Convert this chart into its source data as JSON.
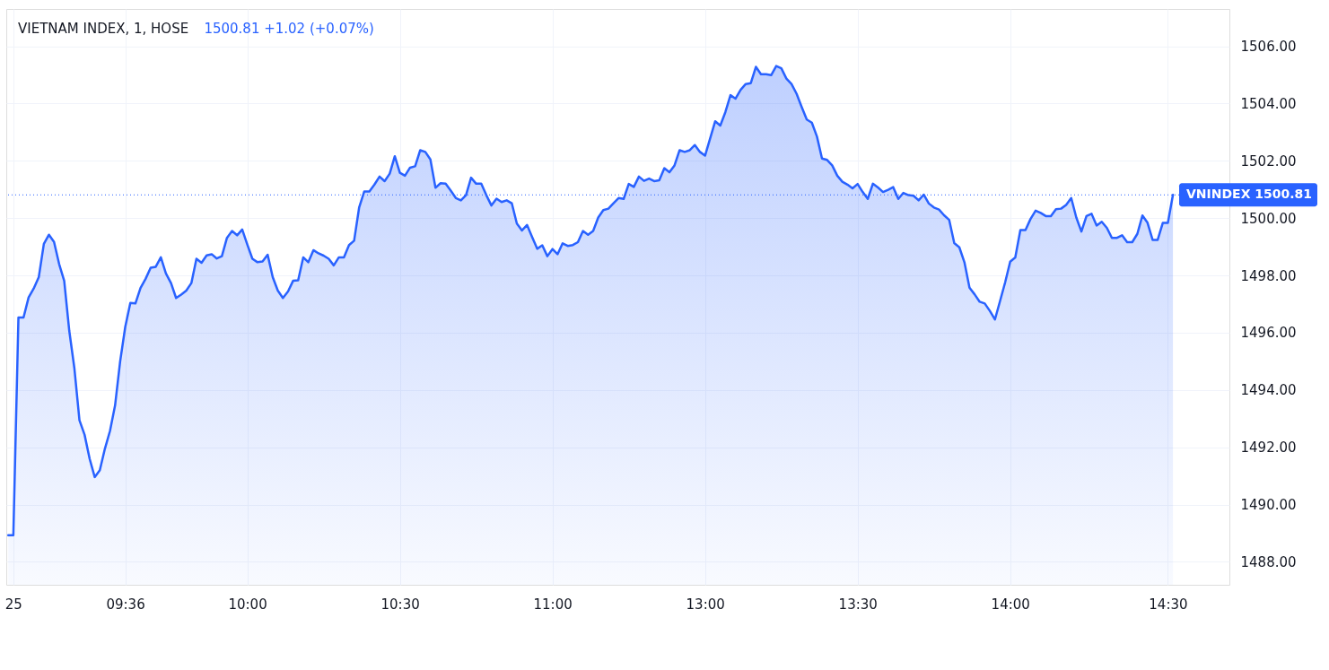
{
  "chart_data": {
    "type": "area",
    "title": "VIETNAM INDEX, 1, HOSE",
    "subtitle": "1500.81 +1.02 (+0.07%)",
    "categories": [
      null,
      "25",
      null,
      null,
      null,
      null,
      null,
      null,
      null,
      null,
      null,
      null,
      null,
      null,
      null,
      null,
      null,
      null,
      null,
      null,
      null,
      null,
      null,
      "09:36",
      null,
      null,
      null,
      null,
      null,
      null,
      null,
      null,
      null,
      null,
      null,
      null,
      null,
      null,
      null,
      null,
      null,
      null,
      null,
      null,
      null,
      null,
      null,
      "10:00",
      null,
      null,
      null,
      null,
      null,
      null,
      null,
      null,
      null,
      null,
      null,
      null,
      null,
      null,
      null,
      null,
      null,
      null,
      null,
      null,
      null,
      null,
      null,
      null,
      null,
      null,
      null,
      null,
      null,
      "10:30",
      null,
      null,
      null,
      null,
      null,
      null,
      null,
      null,
      null,
      null,
      null,
      null,
      null,
      null,
      null,
      null,
      null,
      null,
      null,
      null,
      null,
      null,
      null,
      null,
      null,
      null,
      null,
      null,
      null,
      "11:00",
      null,
      null,
      null,
      null,
      null,
      null,
      null,
      null,
      null,
      null,
      null,
      null,
      null,
      null,
      null,
      null,
      null,
      null,
      null,
      null,
      null,
      null,
      null,
      null,
      null,
      null,
      null,
      null,
      null,
      "13:00",
      null,
      null,
      null,
      null,
      null,
      null,
      null,
      null,
      null,
      null,
      null,
      null,
      null,
      null,
      null,
      null,
      null,
      null,
      null,
      null,
      null,
      null,
      null,
      null,
      null,
      null,
      null,
      null,
      null,
      "13:30",
      null,
      null,
      null,
      null,
      null,
      null,
      null,
      null,
      null,
      null,
      null,
      null,
      null,
      null,
      null,
      null,
      null,
      null,
      null,
      null,
      null,
      null,
      null,
      null,
      null,
      null,
      null,
      null,
      null,
      "14:00",
      null,
      null,
      null,
      null,
      null,
      null,
      null,
      null,
      null,
      null,
      null,
      null,
      null,
      null,
      null,
      null,
      null,
      null,
      null,
      null,
      null,
      null,
      null,
      null,
      null,
      null,
      null,
      null,
      null,
      null,
      "14:30",
      null
    ],
    "series": [
      {
        "color": "#2962ff",
        "values": [
          1488.93,
          1488.93,
          1496.53,
          1496.53,
          1497.23,
          1497.54,
          1497.94,
          1499.1,
          1499.42,
          1499.17,
          1498.4,
          1497.81,
          1496.06,
          1494.76,
          1492.94,
          1492.44,
          1491.6,
          1490.96,
          1491.2,
          1491.95,
          1492.57,
          1493.46,
          1495.0,
          1496.2,
          1497.04,
          1497.02,
          1497.56,
          1497.88,
          1498.27,
          1498.3,
          1498.63,
          1498.07,
          1497.73,
          1497.21,
          1497.33,
          1497.47,
          1497.73,
          1498.58,
          1498.44,
          1498.7,
          1498.74,
          1498.59,
          1498.67,
          1499.31,
          1499.55,
          1499.4,
          1499.6,
          1499.08,
          1498.58,
          1498.46,
          1498.49,
          1498.72,
          1497.94,
          1497.47,
          1497.21,
          1497.44,
          1497.81,
          1497.83,
          1498.63,
          1498.46,
          1498.88,
          1498.77,
          1498.69,
          1498.58,
          1498.35,
          1498.63,
          1498.63,
          1499.06,
          1499.21,
          1500.38,
          1500.93,
          1500.93,
          1501.17,
          1501.45,
          1501.29,
          1501.55,
          1502.16,
          1501.58,
          1501.48,
          1501.76,
          1501.81,
          1502.37,
          1502.31,
          1502.05,
          1501.06,
          1501.22,
          1501.2,
          1500.96,
          1500.7,
          1500.62,
          1500.8,
          1501.41,
          1501.2,
          1501.2,
          1500.8,
          1500.44,
          1500.68,
          1500.56,
          1500.62,
          1500.52,
          1499.81,
          1499.57,
          1499.76,
          1499.34,
          1498.93,
          1499.05,
          1498.67,
          1498.92,
          1498.74,
          1499.12,
          1499.03,
          1499.06,
          1499.16,
          1499.55,
          1499.42,
          1499.55,
          1500.02,
          1500.28,
          1500.33,
          1500.52,
          1500.7,
          1500.67,
          1501.19,
          1501.09,
          1501.45,
          1501.3,
          1501.38,
          1501.29,
          1501.32,
          1501.74,
          1501.6,
          1501.84,
          1502.37,
          1502.31,
          1502.37,
          1502.55,
          1502.31,
          1502.18,
          1502.78,
          1503.38,
          1503.23,
          1503.7,
          1504.29,
          1504.17,
          1504.48,
          1504.68,
          1504.71,
          1505.28,
          1505.02,
          1505.02,
          1504.99,
          1505.31,
          1505.23,
          1504.87,
          1504.68,
          1504.34,
          1503.88,
          1503.44,
          1503.33,
          1502.85,
          1502.08,
          1502.03,
          1501.84,
          1501.48,
          1501.27,
          1501.17,
          1501.04,
          1501.19,
          1500.91,
          1500.67,
          1501.2,
          1501.07,
          1500.91,
          1500.99,
          1501.08,
          1500.67,
          1500.88,
          1500.8,
          1500.78,
          1500.62,
          1500.82,
          1500.51,
          1500.37,
          1500.3,
          1500.1,
          1499.94,
          1499.13,
          1498.98,
          1498.46,
          1497.57,
          1497.34,
          1497.08,
          1497.02,
          1496.76,
          1496.46,
          1497.1,
          1497.75,
          1498.48,
          1498.63,
          1499.58,
          1499.58,
          1499.97,
          1500.26,
          1500.18,
          1500.07,
          1500.07,
          1500.31,
          1500.33,
          1500.46,
          1500.7,
          1500.02,
          1499.53,
          1500.07,
          1500.15,
          1499.74,
          1499.87,
          1499.66,
          1499.31,
          1499.31,
          1499.4,
          1499.16,
          1499.16,
          1499.45,
          1500.09,
          1499.84,
          1499.24,
          1499.24,
          1499.83,
          1499.83,
          1500.81
        ]
      }
    ],
    "ylim": [
      1487.2,
      1507.3
    ],
    "yticks": [
      {
        "value": 1488,
        "label": "1488.00"
      },
      {
        "value": 1490,
        "label": "1490.00"
      },
      {
        "value": 1492,
        "label": "1492.00"
      },
      {
        "value": 1494,
        "label": "1494.00"
      },
      {
        "value": 1496,
        "label": "1496.00"
      },
      {
        "value": 1498,
        "label": "1498.00"
      },
      {
        "value": 1500,
        "label": "1500.00"
      },
      {
        "value": 1502,
        "label": "1502.00"
      },
      {
        "value": 1504,
        "label": "1504.00"
      },
      {
        "value": 1506,
        "label": "1506.00"
      }
    ],
    "grid": true,
    "ref_lines": [
      {
        "axis": "y",
        "value": 1500.81,
        "label": "VNINDEX 1500.81",
        "color": "#2962ff",
        "line_style": "dotted"
      }
    ]
  }
}
